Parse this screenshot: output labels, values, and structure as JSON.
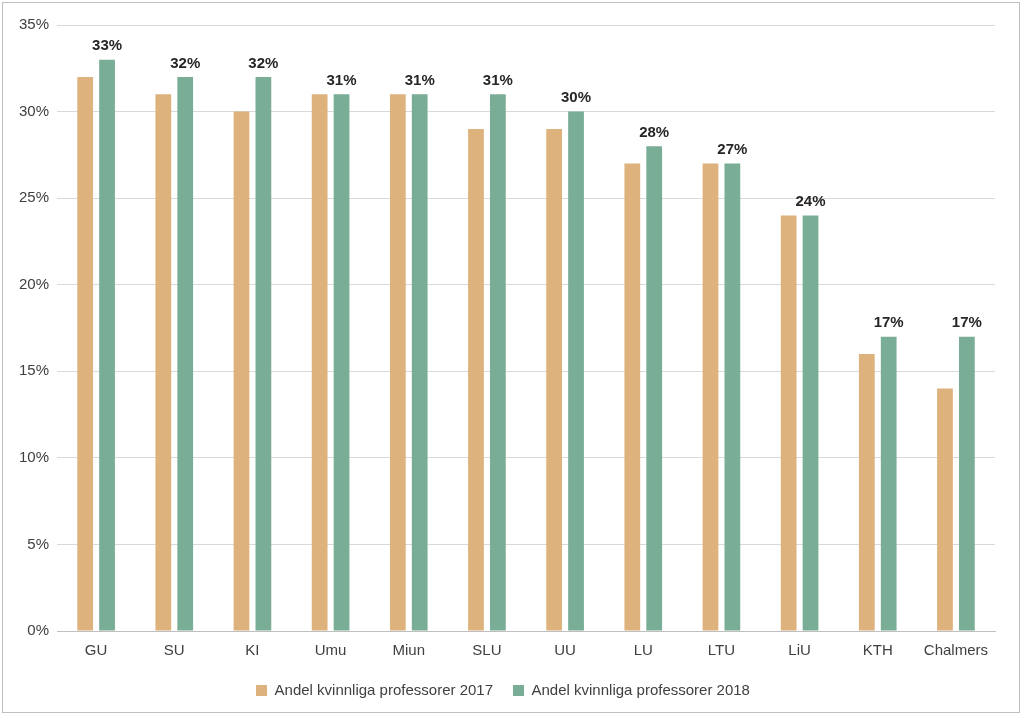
{
  "chart_data": {
    "type": "bar",
    "categories": [
      "GU",
      "SU",
      "KI",
      "Umu",
      "Miun",
      "SLU",
      "UU",
      "LU",
      "LTU",
      "LiU",
      "KTH",
      "Chalmers"
    ],
    "series": [
      {
        "name": "Andel kvinnliga professorer 2017",
        "color": "#DDB27C",
        "values": [
          32,
          31,
          30,
          31,
          31,
          29,
          29,
          27,
          27,
          24,
          16,
          14
        ]
      },
      {
        "name": "Andel kvinnliga professorer 2018",
        "color": "#79AD96",
        "values": [
          33,
          32,
          32,
          31,
          31,
          31,
          30,
          28,
          27,
          24,
          17,
          17
        ],
        "value_labels": [
          "33%",
          "32%",
          "32%",
          "31%",
          "31%",
          "31%",
          "30%",
          "28%",
          "27%",
          "24%",
          "17%",
          "17%"
        ]
      }
    ],
    "ylim": [
      0,
      35
    ],
    "yticks": [
      {
        "value": 0,
        "label": "0%"
      },
      {
        "value": 5,
        "label": "5%"
      },
      {
        "value": 10,
        "label": "10%"
      },
      {
        "value": 15,
        "label": "15%"
      },
      {
        "value": 20,
        "label": "20%"
      },
      {
        "value": 25,
        "label": "25%"
      },
      {
        "value": 30,
        "label": "30%"
      },
      {
        "value": 35,
        "label": "35%"
      }
    ],
    "grid": true,
    "legend": "bottom",
    "data_labels": true
  }
}
